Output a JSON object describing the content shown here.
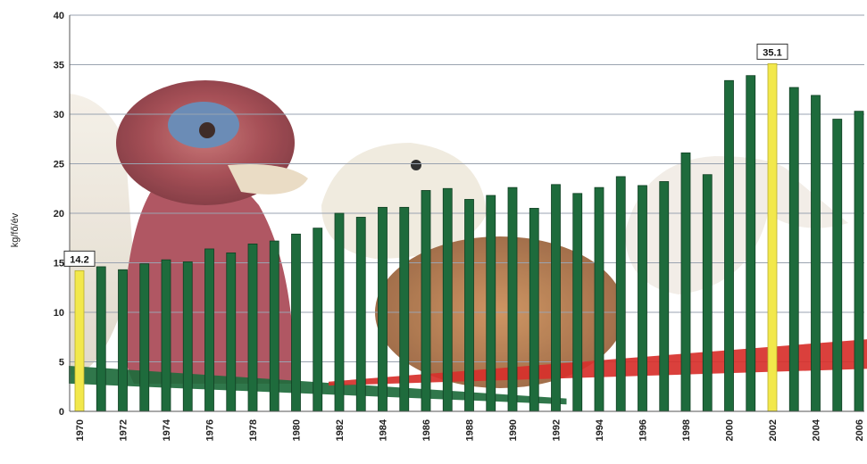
{
  "chart_data": {
    "type": "bar",
    "title": "",
    "xlabel": "",
    "ylabel": "kg/fő/év",
    "ylim": [
      0,
      40
    ],
    "yticks": [
      0,
      5,
      10,
      15,
      20,
      25,
      30,
      35,
      40
    ],
    "grid": true,
    "background": "photo of poultry (turkey, duck, goose, chicken)",
    "bar_color": "#1e6b3c",
    "highlight_color": "#f2e84b",
    "years": [
      1970,
      1971,
      1972,
      1973,
      1974,
      1975,
      1976,
      1977,
      1978,
      1979,
      1980,
      1981,
      1982,
      1983,
      1984,
      1985,
      1986,
      1987,
      1988,
      1989,
      1990,
      1991,
      1992,
      1993,
      1994,
      1995,
      1996,
      1997,
      1998,
      1999,
      2000,
      2001,
      2002,
      2003,
      2004,
      2005,
      2006
    ],
    "x_tick_labels": [
      "1970",
      "1972",
      "1974",
      "1976",
      "1978",
      "1980",
      "1982",
      "1984",
      "1986",
      "1988",
      "1990",
      "1992",
      "1994",
      "1996",
      "1998",
      "2000",
      "2002",
      "2004",
      "2006"
    ],
    "values": [
      14.2,
      14.6,
      14.3,
      14.9,
      15.3,
      15.1,
      16.4,
      16.0,
      16.9,
      17.2,
      17.9,
      18.5,
      20.0,
      19.6,
      20.6,
      20.6,
      22.3,
      22.5,
      21.4,
      21.8,
      22.6,
      20.5,
      22.9,
      22.0,
      22.6,
      23.7,
      22.8,
      23.2,
      26.1,
      23.9,
      33.4,
      33.9,
      35.1,
      32.7,
      31.9,
      29.5,
      30.3
    ],
    "highlighted": [
      {
        "year": 1970,
        "value": 14.2,
        "label": "14.2"
      },
      {
        "year": 2002,
        "value": 35.1,
        "label": "35.1"
      }
    ],
    "bands": [
      {
        "color": "#1e6b3c",
        "from_year": 1970,
        "to_year": 1992,
        "start": [
          2.8,
          4.6
        ],
        "end": [
          0.7,
          1.3
        ]
      },
      {
        "color": "#d7302b",
        "from_year": 1982,
        "to_year": 2006,
        "start": [
          2.6,
          3.0
        ],
        "end": [
          4.3,
          7.3
        ]
      }
    ]
  }
}
